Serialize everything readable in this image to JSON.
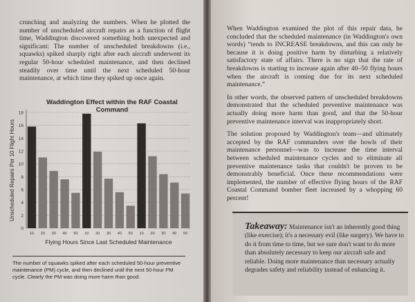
{
  "left_page": {
    "paragraphs": [
      "crunching and analyzing the numbers. When he plotted the number of unscheduled aircraft repairs as a function of flight time, Waddington discovered something both unexpected and significant: The number of unscheduled breakdowns (i.e., squawks) spiked sharply right after each aircraft underwent its regular 50-hour scheduled maintenance, and then declined steadily over time until the next scheduled 50-hour maintenance, at which time they spiked up once again."
    ],
    "caption": "The number of squawks spiked after each scheduled 50-hour preventive maintenance (PM) cycle, and then declined until the next 50-hour PM cycle. Clearly the PM was doing more harm than good."
  },
  "chart_data": {
    "type": "bar",
    "title": "Waddington Effect within the RAF Coastal Command",
    "xlabel": "Flying Hours Since Last Scheduled Maintenance",
    "ylabel": "Unscheduled Repairs Per 10 Flight Hours",
    "categories": [
      "10",
      "20",
      "30",
      "40",
      "50",
      "10",
      "20",
      "30",
      "40",
      "50",
      "10",
      "20",
      "30",
      "40",
      "50"
    ],
    "values": [
      15.8,
      11.0,
      8.9,
      7.6,
      5.5,
      17.8,
      11.9,
      7.7,
      5.6,
      3.5,
      16.3,
      11.2,
      8.4,
      7.1,
      5.4
    ],
    "yticks": [
      0,
      2,
      4,
      6,
      8,
      10,
      12,
      14,
      16,
      18
    ],
    "ylim": [
      0,
      18
    ],
    "grid": true,
    "colors": {
      "post_maintenance": "#2e2a28",
      "other": "#7d7874"
    }
  },
  "right_page": {
    "paragraphs": [
      "When Waddington examined the plot of this repair data, he concluded that the scheduled maintenance (in Waddington's own words) “tends to INCREASE breakdowns, and this can only be because it is doing positive harm by disturbing a relatively satisfactory state of affairs. There is no sign that the rate of breakdowns is starting to increase again after 40–50 flying hours when the aircraft is coming due for its next scheduled maintenance.”",
      "In other words, the observed pattern of unscheduled breakdowns demonstrated that the scheduled preventive maintenance was actually doing more harm than good, and that the 50-hour preventive maintenance interval was inappropriately short.",
      "The solution proposed by Waddington's team—and ultimately accepted by the RAF commanders over the howls of their maintenance personnel—was to increase the time interval between scheduled maintenance cycles and to eliminate all preventive maintenance tasks that couldn't be proven to be demonstrably beneficial. Once these recommendations were implemented, the number of effective flying hours of the RAF Coastal Command bomber fleet increased by a whopping 60 percent!"
    ],
    "takeaway": {
      "label": "Takeaway:",
      "text": " Maintenance isn't an inherently good thing (like exercise); it's a necessary evil (like surgery). We have to do it from time to time, but we sure don't want to do more than absolutely necessary to keep our aircraft safe and reliable. Doing more maintenance than necessary actually degrades safety and reliability instead of enhancing it."
    }
  }
}
